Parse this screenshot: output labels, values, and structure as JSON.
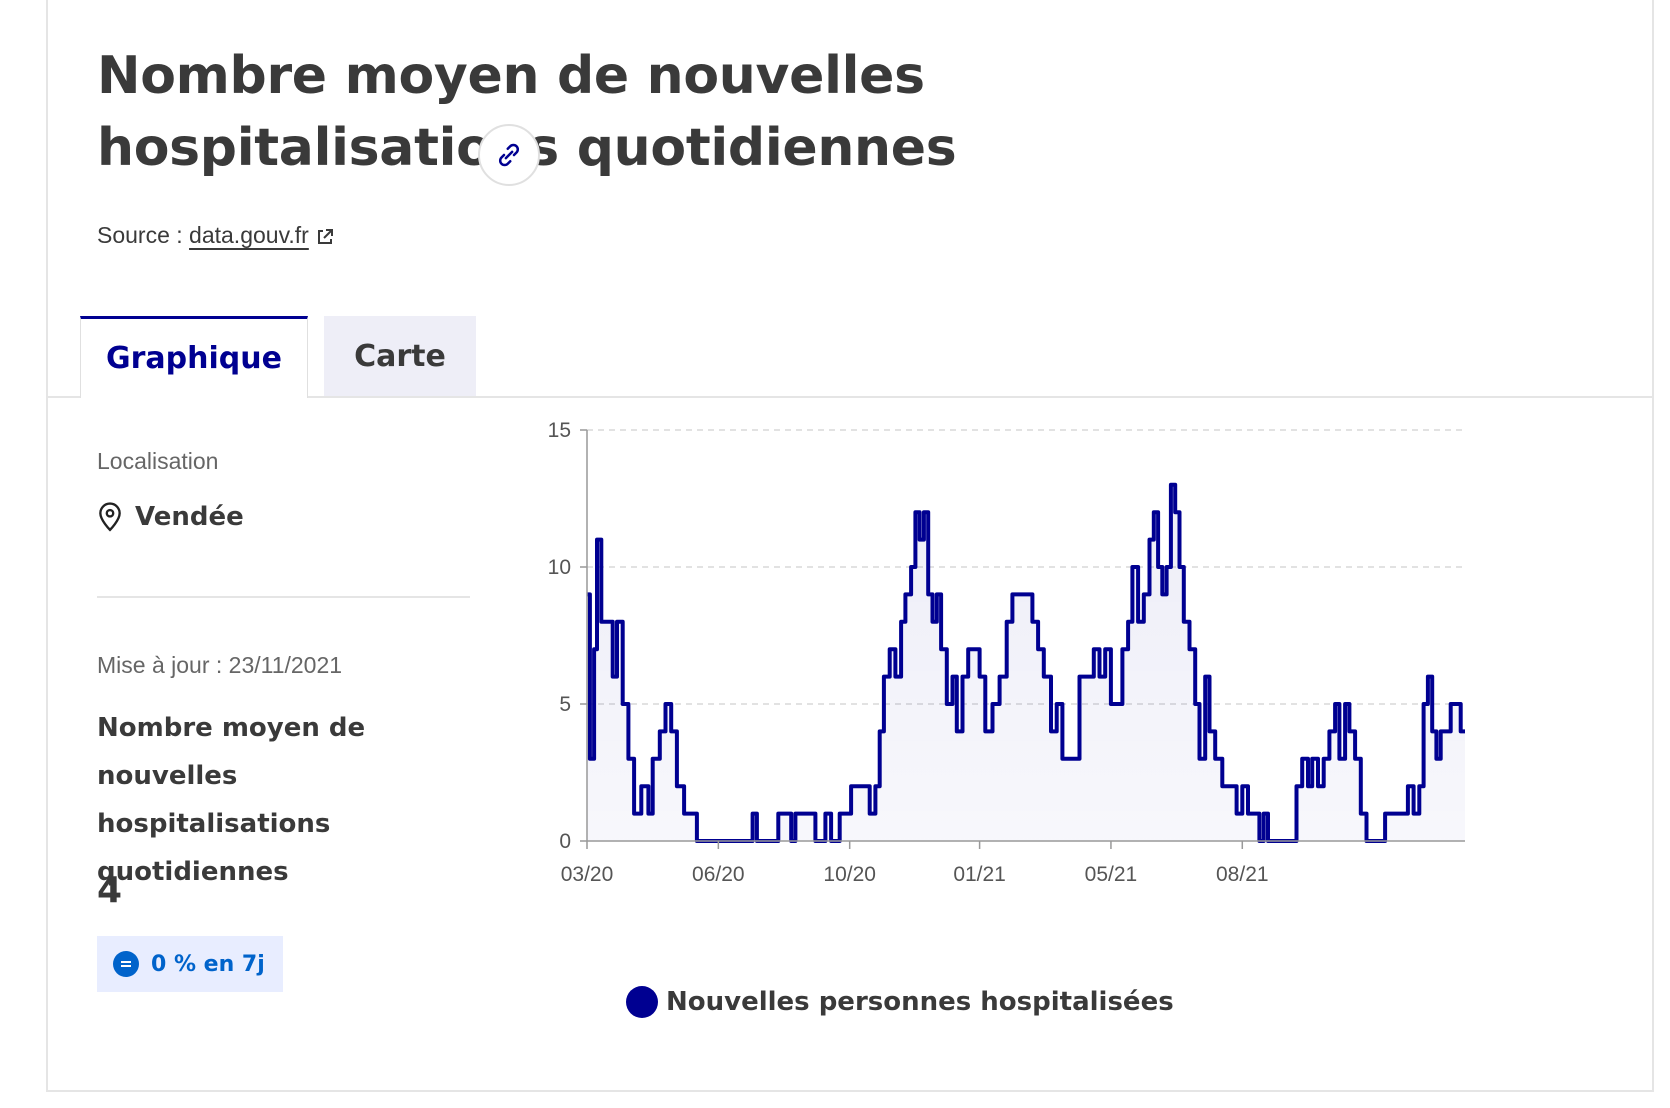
{
  "header": {
    "title": "Nombre moyen de nouvelles hospitalisations quotidiennes",
    "source_label": "Source :",
    "source_link": "data.gouv.fr"
  },
  "tabs": [
    {
      "label": "Graphique",
      "active": true
    },
    {
      "label": "Carte",
      "active": false
    }
  ],
  "sidebar": {
    "location_label": "Localisation",
    "location_value": "Vendée",
    "update_label": "Mise à jour : 23/11/2021",
    "kpi_title": "Nombre moyen de nouvelles hospitalisations quotidiennes",
    "kpi_value": "4",
    "badge": "0 % en 7j"
  },
  "colors": {
    "primary": "#000091",
    "badge_text": "#0063cb",
    "badge_bg": "#e8edff"
  },
  "chart_data": {
    "type": "line",
    "series": [
      {
        "name": "Nouvelles personnes hospitalisées",
        "color": "#000091",
        "points": [
          [
            "2020-03-18",
            9
          ],
          [
            "2020-03-20",
            3
          ],
          [
            "2020-03-23",
            7
          ],
          [
            "2020-03-25",
            11
          ],
          [
            "2020-03-28",
            8
          ],
          [
            "2020-04-02",
            8
          ],
          [
            "2020-04-05",
            6
          ],
          [
            "2020-04-08",
            8
          ],
          [
            "2020-04-12",
            5
          ],
          [
            "2020-04-16",
            3
          ],
          [
            "2020-04-20",
            1
          ],
          [
            "2020-04-25",
            2
          ],
          [
            "2020-04-30",
            1
          ],
          [
            "2020-05-03",
            3
          ],
          [
            "2020-05-08",
            4
          ],
          [
            "2020-05-12",
            5
          ],
          [
            "2020-05-16",
            4
          ],
          [
            "2020-05-20",
            2
          ],
          [
            "2020-05-25",
            1
          ],
          [
            "2020-05-31",
            1
          ],
          [
            "2020-06-03",
            0
          ],
          [
            "2020-07-10",
            0
          ],
          [
            "2020-07-12",
            1
          ],
          [
            "2020-07-15",
            0
          ],
          [
            "2020-07-27",
            0
          ],
          [
            "2020-07-30",
            1
          ],
          [
            "2020-08-08",
            0
          ],
          [
            "2020-08-11",
            1
          ],
          [
            "2020-08-22",
            1
          ],
          [
            "2020-08-25",
            0
          ],
          [
            "2020-09-01",
            1
          ],
          [
            "2020-09-05",
            0
          ],
          [
            "2020-09-11",
            1
          ],
          [
            "2020-09-16",
            1
          ],
          [
            "2020-09-19",
            2
          ],
          [
            "2020-09-28",
            2
          ],
          [
            "2020-10-02",
            1
          ],
          [
            "2020-10-06",
            2
          ],
          [
            "2020-10-09",
            4
          ],
          [
            "2020-10-12",
            6
          ],
          [
            "2020-10-16",
            7
          ],
          [
            "2020-10-20",
            6
          ],
          [
            "2020-10-24",
            8
          ],
          [
            "2020-10-27",
            9
          ],
          [
            "2020-10-31",
            10
          ],
          [
            "2020-11-03",
            12
          ],
          [
            "2020-11-06",
            11
          ],
          [
            "2020-11-09",
            12
          ],
          [
            "2020-11-12",
            9
          ],
          [
            "2020-11-15",
            8
          ],
          [
            "2020-11-18",
            9
          ],
          [
            "2020-11-21",
            7
          ],
          [
            "2020-11-25",
            5
          ],
          [
            "2020-11-29",
            6
          ],
          [
            "2020-12-02",
            4
          ],
          [
            "2020-12-06",
            6
          ],
          [
            "2020-12-10",
            7
          ],
          [
            "2020-12-14",
            7
          ],
          [
            "2020-12-18",
            6
          ],
          [
            "2020-12-22",
            4
          ],
          [
            "2020-12-27",
            5
          ],
          [
            "2021-01-01",
            6
          ],
          [
            "2021-01-06",
            8
          ],
          [
            "2021-01-10",
            9
          ],
          [
            "2021-01-20",
            9
          ],
          [
            "2021-01-24",
            8
          ],
          [
            "2021-01-28",
            7
          ],
          [
            "2021-02-01",
            6
          ],
          [
            "2021-02-06",
            4
          ],
          [
            "2021-02-10",
            5
          ],
          [
            "2021-02-14",
            3
          ],
          [
            "2021-02-22",
            3
          ],
          [
            "2021-02-26",
            6
          ],
          [
            "2021-03-05",
            6
          ],
          [
            "2021-03-08",
            7
          ],
          [
            "2021-03-12",
            6
          ],
          [
            "2021-03-16",
            7
          ],
          [
            "2021-03-20",
            5
          ],
          [
            "2021-03-24",
            5
          ],
          [
            "2021-03-28",
            7
          ],
          [
            "2021-04-01",
            8
          ],
          [
            "2021-04-04",
            10
          ],
          [
            "2021-04-08",
            8
          ],
          [
            "2021-04-12",
            9
          ],
          [
            "2021-04-16",
            11
          ],
          [
            "2021-04-19",
            12
          ],
          [
            "2021-04-22",
            10
          ],
          [
            "2021-04-25",
            9
          ],
          [
            "2021-04-28",
            10
          ],
          [
            "2021-05-01",
            13
          ],
          [
            "2021-05-04",
            12
          ],
          [
            "2021-05-07",
            10
          ],
          [
            "2021-05-10",
            8
          ],
          [
            "2021-05-14",
            7
          ],
          [
            "2021-05-18",
            5
          ],
          [
            "2021-05-21",
            3
          ],
          [
            "2021-05-25",
            6
          ],
          [
            "2021-05-28",
            4
          ],
          [
            "2021-06-01",
            3
          ],
          [
            "2021-06-06",
            2
          ],
          [
            "2021-06-12",
            2
          ],
          [
            "2021-06-16",
            1
          ],
          [
            "2021-06-20",
            2
          ],
          [
            "2021-06-24",
            1
          ],
          [
            "2021-06-28",
            1
          ],
          [
            "2021-07-02",
            0
          ],
          [
            "2021-07-05",
            1
          ],
          [
            "2021-07-08",
            0
          ],
          [
            "2021-07-24",
            0
          ],
          [
            "2021-07-28",
            2
          ],
          [
            "2021-08-01",
            3
          ],
          [
            "2021-08-05",
            2
          ],
          [
            "2021-08-08",
            3
          ],
          [
            "2021-08-12",
            2
          ],
          [
            "2021-08-16",
            3
          ],
          [
            "2021-08-20",
            4
          ],
          [
            "2021-08-24",
            5
          ],
          [
            "2021-08-27",
            3
          ],
          [
            "2021-08-31",
            5
          ],
          [
            "2021-09-03",
            4
          ],
          [
            "2021-09-07",
            3
          ],
          [
            "2021-09-11",
            1
          ],
          [
            "2021-09-15",
            0
          ],
          [
            "2021-09-25",
            0
          ],
          [
            "2021-09-28",
            1
          ],
          [
            "2021-10-10",
            1
          ],
          [
            "2021-10-14",
            2
          ],
          [
            "2021-10-18",
            1
          ],
          [
            "2021-10-22",
            2
          ],
          [
            "2021-10-25",
            5
          ],
          [
            "2021-10-28",
            6
          ],
          [
            "2021-10-31",
            4
          ],
          [
            "2021-11-03",
            3
          ],
          [
            "2021-11-06",
            4
          ],
          [
            "2021-11-10",
            4
          ],
          [
            "2021-11-13",
            5
          ],
          [
            "2021-11-17",
            5
          ],
          [
            "2021-11-20",
            4
          ],
          [
            "2021-11-23",
            4
          ]
        ]
      }
    ],
    "xticks": [
      {
        "label": "03/20",
        "date": "2020-03-18"
      },
      {
        "label": "06/20",
        "date": "2020-06-18"
      },
      {
        "label": "10/20",
        "date": "2020-09-18"
      },
      {
        "label": "01/21",
        "date": "2020-12-18"
      },
      {
        "label": "05/21",
        "date": "2021-03-20"
      },
      {
        "label": "08/21",
        "date": "2021-06-20"
      }
    ],
    "yticks": [
      0,
      5,
      10,
      15
    ],
    "ylim": [
      0,
      15
    ],
    "xlim": [
      "2020-03-18",
      "2021-11-23"
    ],
    "grid": "horizontal dashed",
    "legend": "bottom"
  }
}
